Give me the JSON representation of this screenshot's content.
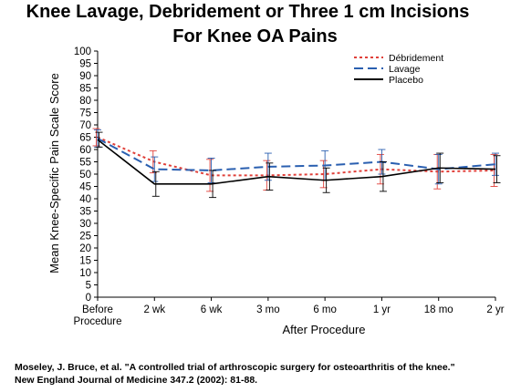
{
  "title_line1": "Knee Lavage, Debridement or Three 1 cm Incisions",
  "title_line2": "For Knee OA Pains",
  "citation_line1": "Moseley, J. Bruce, et al. \"A controlled trial of arthroscopic surgery for osteoarthritis of the knee.\"",
  "citation_line2": "New England Journal of Medicine 347.2 (2002): 81-88.",
  "chart_data": {
    "type": "line",
    "xlabel": "After Procedure",
    "ylabel": "Mean Knee-Specific Pain Scale Score",
    "categories": [
      [
        "Before",
        "Procedure"
      ],
      [
        "2 wk"
      ],
      [
        "6 wk"
      ],
      [
        "3 mo"
      ],
      [
        "6 mo"
      ],
      [
        "1 yr"
      ],
      [
        "18 mo"
      ],
      [
        "2 yr"
      ]
    ],
    "ylim": [
      0,
      100
    ],
    "yticks": [
      0,
      5,
      10,
      15,
      20,
      25,
      30,
      35,
      40,
      45,
      50,
      55,
      60,
      65,
      70,
      75,
      80,
      85,
      90,
      95,
      100
    ],
    "grid": false,
    "legend_position": "top-right",
    "error_bars": true,
    "series": [
      {
        "name": "Débridement",
        "color": "#e0403a",
        "style": "dotted",
        "values": [
          65,
          55,
          49.5,
          49.5,
          50,
          52,
          51,
          51.5
        ],
        "errors": [
          3.5,
          4.5,
          6.5,
          6,
          5.5,
          6,
          7,
          6.5
        ]
      },
      {
        "name": "Lavage",
        "color": "#2a5fb0",
        "style": "dashed",
        "values": [
          64.5,
          52,
          51.5,
          53,
          53.5,
          55,
          52,
          54
        ],
        "errors": [
          3.5,
          5,
          5,
          5.5,
          6,
          5,
          6,
          4.5
        ]
      },
      {
        "name": "Placebo",
        "color": "#000000",
        "style": "solid",
        "values": [
          64,
          46,
          46,
          49,
          47.5,
          49,
          52.5,
          52
        ],
        "errors": [
          3,
          5,
          5.5,
          5.5,
          5,
          6,
          6,
          5.5
        ]
      }
    ]
  }
}
